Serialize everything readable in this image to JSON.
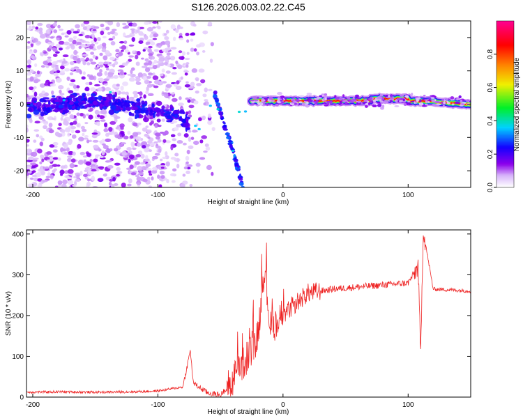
{
  "title": "S126.2026.003.02.22.C45",
  "colors": {
    "snr_line": "#ee2222",
    "frame": "#000000",
    "grid_bg": "#ffffff"
  },
  "chart_data": [
    {
      "type": "heatmap",
      "name": "spectrogram",
      "title": "S126.2026.003.02.22.C45",
      "xlabel": "Height of straight line (km)",
      "ylabel": "Frequency (Hz)",
      "xlim": [
        -205,
        150
      ],
      "ylim": [
        -25,
        25
      ],
      "xticks": [
        -200,
        -100,
        0,
        100
      ],
      "yticks": [
        -20,
        -10,
        0,
        10,
        20
      ],
      "colormap": "rainbow (white-violet-blue-cyan-green-yellow-orange-red-magenta)",
      "colorbar": {
        "label": "Normalized spectral amplitude",
        "range": [
          0.0,
          1.0
        ],
        "ticks": [
          0.0,
          0.2,
          0.4,
          0.6,
          0.8
        ]
      },
      "features": [
        {
          "description": "scattered low-amplitude noise",
          "x_range": [
            -205,
            -95
          ],
          "y_range": [
            -25,
            25
          ],
          "amplitude": 0.15
        },
        {
          "description": "Doppler track near 0 Hz",
          "x": [
            -205,
            -150,
            -100,
            -80,
            -75
          ],
          "y": [
            -1,
            1,
            -2,
            -4,
            -7
          ],
          "amplitude": 0.25
        },
        {
          "description": "descending streak",
          "x": [
            -55,
            -48,
            -40,
            -32
          ],
          "y": [
            4,
            -5,
            -14,
            -25
          ],
          "amplitude": 0.3
        },
        {
          "description": "strong carrier line",
          "x": [
            -25,
            0,
            50,
            100,
            150
          ],
          "y": [
            1,
            1,
            1,
            1.5,
            0
          ],
          "amplitude": 0.9
        }
      ]
    },
    {
      "type": "line",
      "name": "snr",
      "xlabel": "Height of straight line (km)",
      "ylabel": "SNR (10 * v/v)",
      "xlim": [
        -205,
        150
      ],
      "ylim": [
        0,
        410
      ],
      "xticks": [
        -200,
        -100,
        0,
        100
      ],
      "yticks": [
        0,
        100,
        200,
        300,
        400
      ],
      "series": [
        {
          "name": "SNR",
          "x": [
            -205,
            -180,
            -150,
            -120,
            -100,
            -90,
            -80,
            -74,
            -72,
            -70,
            -60,
            -50,
            -40,
            -30,
            -20,
            -15,
            -10,
            0,
            10,
            20,
            30,
            40,
            60,
            80,
            100,
            108,
            110,
            112,
            120,
            140,
            150
          ],
          "y": [
            12,
            13,
            12,
            13,
            15,
            20,
            25,
            115,
            40,
            30,
            10,
            5,
            40,
            90,
            150,
            320,
            170,
            190,
            230,
            255,
            260,
            265,
            270,
            275,
            280,
            320,
            100,
            410,
            265,
            262,
            260
          ]
        }
      ]
    }
  ]
}
